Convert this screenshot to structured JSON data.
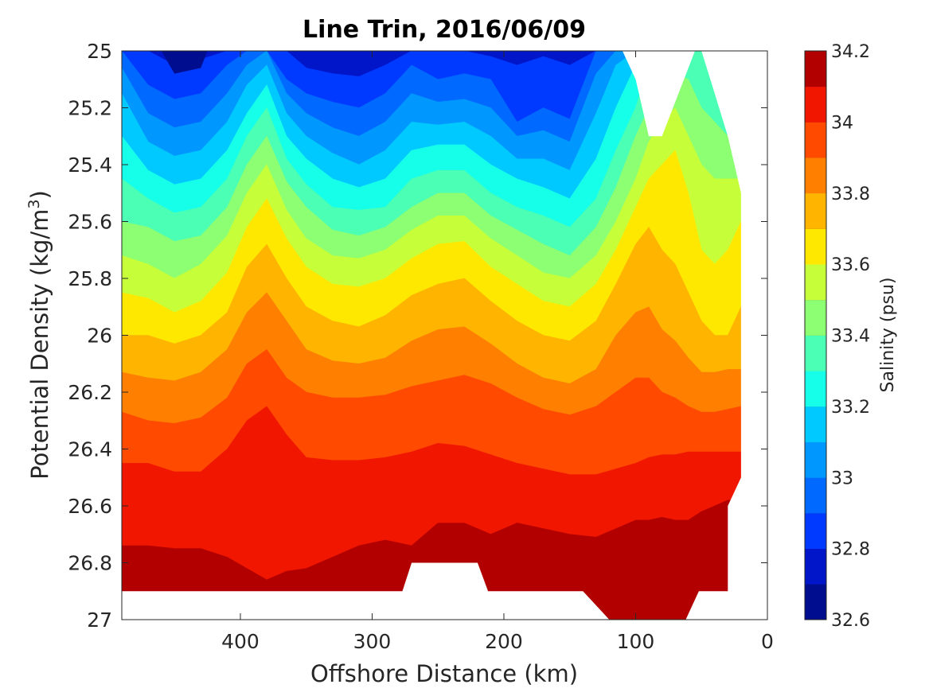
{
  "chart_data": {
    "type": "contour",
    "title": "Line Trin, 2016/06/09",
    "xlabel": "Offshore Distance (km)",
    "ylabel_main": "Potential Density (kg/m",
    "ylabel_sup": "3",
    "ylabel_tail": ")",
    "colorbar_label": "Salinity (psu)",
    "x_reversed": true,
    "y_reversed": true,
    "xlim": [
      0,
      490
    ],
    "ylim": [
      25,
      27
    ],
    "x_ticks": [
      400,
      300,
      200,
      100,
      0
    ],
    "y_ticks": [
      25,
      25.2,
      25.4,
      25.6,
      25.8,
      26,
      26.2,
      26.4,
      26.6,
      26.8,
      27
    ],
    "colorbar_ticks": [
      32.6,
      32.8,
      33,
      33.2,
      33.4,
      33.6,
      33.8,
      34,
      34.2
    ],
    "contour_levels": [
      32.6,
      32.7,
      32.8,
      32.9,
      33.0,
      33.1,
      33.2,
      33.3,
      33.4,
      33.5,
      33.6,
      33.7,
      33.8,
      33.9,
      34.0,
      34.1,
      34.2
    ],
    "colors": [
      "#000d8f",
      "#0016c8",
      "#0039ff",
      "#0069ff",
      "#0098ff",
      "#00c9ff",
      "#16ffe9",
      "#4bffb4",
      "#8dff72",
      "#c6ff39",
      "#ffe800",
      "#ffb400",
      "#ff7f00",
      "#ff4a00",
      "#f01600",
      "#b20000"
    ],
    "profile_x": [
      490,
      470,
      450,
      430,
      410,
      395,
      380,
      365,
      350,
      330,
      310,
      290,
      270,
      250,
      230,
      210,
      190,
      170,
      150,
      130,
      115,
      100,
      90,
      80,
      70,
      60,
      50,
      40,
      30,
      20
    ],
    "isohalines": [
      {
        "level": 32.8,
        "density": [
          25.0,
          25.0,
          25.05,
          25.03,
          25.0,
          25.0,
          25.0,
          25.0,
          25.06,
          25.08,
          25.09,
          25.05,
          25.0,
          25.0,
          25.0,
          25.02,
          25.05,
          25.02,
          25.05,
          25.0,
          25.0,
          25.0,
          25.0,
          25.0,
          25.0,
          25.0,
          25.0,
          25.0,
          25.0,
          25.0
        ]
      },
      {
        "level": 32.9,
        "density": [
          25.0,
          25.12,
          25.17,
          25.15,
          25.05,
          25.0,
          25.0,
          25.1,
          25.15,
          25.18,
          25.2,
          25.15,
          25.05,
          25.1,
          25.08,
          25.1,
          25.25,
          25.2,
          25.24,
          25.0,
          25.0,
          25.0,
          25.0,
          25.0,
          25.0,
          25.0,
          25.0,
          25.0,
          25.0,
          25.0
        ]
      },
      {
        "level": 33.0,
        "density": [
          25.06,
          25.22,
          25.27,
          25.25,
          25.15,
          25.05,
          25.0,
          25.15,
          25.22,
          25.27,
          25.3,
          25.25,
          25.15,
          25.18,
          25.17,
          25.2,
          25.3,
          25.28,
          25.32,
          25.08,
          25.0,
          25.0,
          25.0,
          25.0,
          25.0,
          25.0,
          25.0,
          25.0,
          25.0,
          25.0
        ]
      },
      {
        "level": 33.1,
        "density": [
          25.15,
          25.32,
          25.37,
          25.35,
          25.25,
          25.12,
          25.05,
          25.22,
          25.3,
          25.36,
          25.4,
          25.35,
          25.25,
          25.26,
          25.25,
          25.3,
          25.38,
          25.38,
          25.42,
          25.22,
          25.05,
          25.0,
          25.0,
          25.0,
          25.0,
          25.0,
          25.0,
          25.0,
          25.0,
          25.0
        ]
      },
      {
        "level": 33.2,
        "density": [
          25.3,
          25.42,
          25.47,
          25.45,
          25.35,
          25.22,
          25.12,
          25.3,
          25.38,
          25.45,
          25.48,
          25.45,
          25.35,
          25.33,
          25.33,
          25.4,
          25.45,
          25.48,
          25.52,
          25.38,
          25.2,
          25.05,
          25.0,
          25.0,
          25.0,
          25.0,
          25.0,
          25.0,
          25.0,
          25.0
        ]
      },
      {
        "level": 33.3,
        "density": [
          25.45,
          25.52,
          25.57,
          25.55,
          25.45,
          25.3,
          25.2,
          25.38,
          25.47,
          25.55,
          25.56,
          25.55,
          25.45,
          25.42,
          25.42,
          25.5,
          25.55,
          25.58,
          25.62,
          25.52,
          25.35,
          25.2,
          25.05,
          25.0,
          25.0,
          25.0,
          25.0,
          25.0,
          25.0,
          25.0
        ]
      },
      {
        "level": 33.4,
        "density": [
          25.6,
          25.62,
          25.67,
          25.65,
          25.55,
          25.4,
          25.3,
          25.46,
          25.55,
          25.63,
          25.65,
          25.62,
          25.55,
          25.5,
          25.5,
          25.58,
          25.63,
          25.68,
          25.72,
          25.62,
          25.48,
          25.3,
          25.2,
          25.12,
          25.08,
          25.1,
          25.2,
          25.25,
          25.3,
          25.35
        ]
      },
      {
        "level": 33.5,
        "density": [
          25.72,
          25.75,
          25.8,
          25.75,
          25.65,
          25.5,
          25.4,
          25.56,
          25.66,
          25.72,
          25.73,
          25.7,
          25.63,
          25.58,
          25.58,
          25.66,
          25.72,
          25.78,
          25.8,
          25.72,
          25.6,
          25.45,
          25.32,
          25.25,
          25.2,
          25.3,
          25.4,
          25.45,
          25.45,
          25.45
        ]
      },
      {
        "level": 33.6,
        "density": [
          25.85,
          25.87,
          25.92,
          25.88,
          25.78,
          25.62,
          25.52,
          25.66,
          25.76,
          25.82,
          25.83,
          25.8,
          25.73,
          25.68,
          25.67,
          25.76,
          25.82,
          25.88,
          25.9,
          25.82,
          25.7,
          25.55,
          25.45,
          25.4,
          25.35,
          25.5,
          25.7,
          25.75,
          25.7,
          25.6
        ]
      },
      {
        "level": 33.7,
        "density": [
          26.0,
          26.0,
          26.03,
          26.0,
          25.92,
          25.76,
          25.68,
          25.8,
          25.9,
          25.95,
          25.97,
          25.93,
          25.86,
          25.82,
          25.8,
          25.88,
          25.95,
          26.0,
          26.02,
          25.95,
          25.82,
          25.68,
          25.62,
          25.7,
          25.75,
          25.85,
          25.95,
          26.0,
          26.0,
          25.9
        ]
      },
      {
        "level": 33.8,
        "density": [
          26.13,
          26.15,
          26.16,
          26.13,
          26.05,
          25.92,
          25.85,
          25.95,
          26.05,
          26.09,
          26.1,
          26.08,
          26.02,
          25.98,
          25.97,
          26.03,
          26.1,
          26.15,
          26.17,
          26.12,
          26.0,
          25.92,
          25.9,
          25.98,
          26.02,
          26.08,
          26.13,
          26.13,
          26.12,
          26.12
        ]
      },
      {
        "level": 33.9,
        "density": [
          26.27,
          26.3,
          26.31,
          26.29,
          26.22,
          26.1,
          26.05,
          26.15,
          26.2,
          26.22,
          26.22,
          26.21,
          26.18,
          26.16,
          26.14,
          26.17,
          26.22,
          26.26,
          26.28,
          26.25,
          26.2,
          26.15,
          26.15,
          26.2,
          26.22,
          26.25,
          26.27,
          26.27,
          26.26,
          26.25
        ]
      },
      {
        "level": 34.0,
        "density": [
          26.45,
          26.45,
          26.48,
          26.48,
          26.4,
          26.3,
          26.25,
          26.35,
          26.43,
          26.44,
          26.44,
          26.43,
          26.41,
          26.38,
          26.39,
          26.42,
          26.45,
          26.47,
          26.49,
          26.49,
          26.47,
          26.45,
          26.43,
          26.42,
          26.42,
          26.41,
          26.41,
          26.41,
          26.41,
          26.41
        ]
      },
      {
        "level": 34.1,
        "density": [
          26.74,
          26.74,
          26.75,
          26.75,
          26.78,
          26.82,
          26.86,
          26.83,
          26.82,
          26.78,
          26.74,
          26.72,
          26.74,
          26.66,
          26.66,
          26.7,
          26.66,
          26.68,
          26.7,
          26.71,
          26.68,
          26.65,
          26.65,
          26.64,
          26.65,
          26.65,
          26.62,
          26.6,
          26.58,
          26.58
        ]
      },
      {
        "level": 34.2,
        "density": [
          27.0,
          27.0,
          27.0,
          27.0,
          27.0,
          27.0,
          27.0,
          27.0,
          27.0,
          27.0,
          27.0,
          27.0,
          27.0,
          27.0,
          27.0,
          27.0,
          27.0,
          27.0,
          26.9,
          26.9,
          26.89,
          26.9,
          26.87,
          26.86,
          26.85,
          26.85,
          26.85,
          26.85,
          26.85,
          27.0
        ]
      }
    ],
    "mask": {
      "note_free": true,
      "bottom_edge": [
        [
          490,
          26.9
        ],
        [
          277,
          26.9
        ],
        [
          270,
          26.8
        ],
        [
          220,
          26.8
        ],
        [
          212,
          26.9
        ],
        [
          140,
          26.9
        ],
        [
          120,
          27.0
        ],
        [
          62,
          27.0
        ],
        [
          52,
          26.9
        ],
        [
          30,
          26.9
        ],
        [
          30,
          26.6
        ],
        [
          20,
          26.5
        ],
        [
          20,
          25.5
        ]
      ],
      "top_edge": [
        [
          20,
          25.5
        ],
        [
          30,
          25.3
        ],
        [
          40,
          25.15
        ],
        [
          50,
          25.0
        ],
        [
          55,
          25.0
        ],
        [
          80,
          25.3
        ],
        [
          90,
          25.3
        ],
        [
          100,
          25.1
        ],
        [
          110,
          25.0
        ]
      ]
    }
  }
}
